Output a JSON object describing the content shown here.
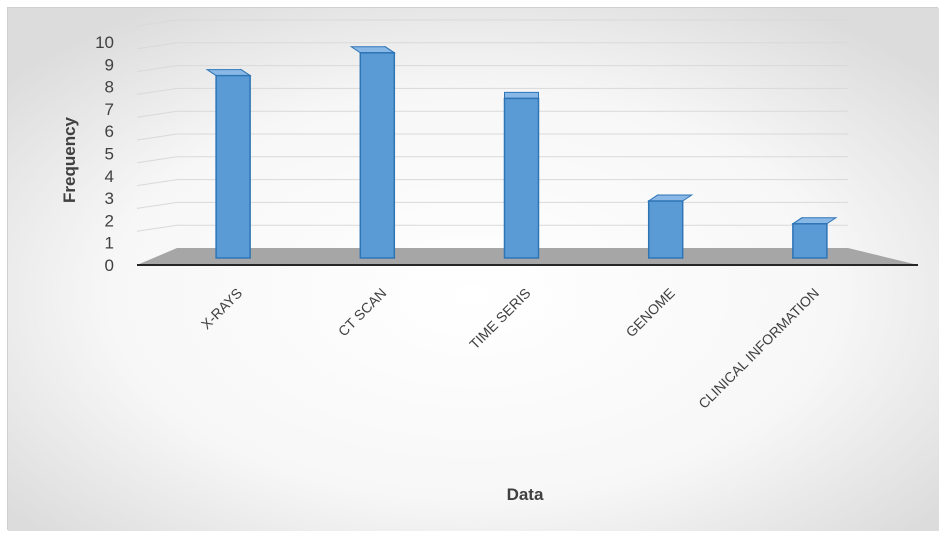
{
  "chart_data": {
    "type": "bar",
    "style": "3d-column",
    "categories": [
      "X-RAYS",
      "CT SCAN",
      "TIME SERIS",
      "GENOME",
      "CLINICAL INFORMATION"
    ],
    "series": [
      {
        "values": [
          8,
          9,
          7,
          2.5,
          1.5
        ]
      }
    ],
    "xlabel": "Data",
    "ylabel": "Frequency",
    "ylim": [
      0,
      10
    ],
    "yticks": [
      0,
      1,
      2,
      3,
      4,
      5,
      6,
      7,
      8,
      9,
      10
    ],
    "grid": true,
    "legend": "none",
    "colors": {
      "bar_front": "#5b9bd5",
      "bar_side": "#2e5f8f",
      "bar_top": "#8ab8e6",
      "bar_edge": "#2e75b6",
      "floor": "#a6a6a6",
      "gridline": "#d9d9d9",
      "background": "#f2f2f2"
    }
  }
}
